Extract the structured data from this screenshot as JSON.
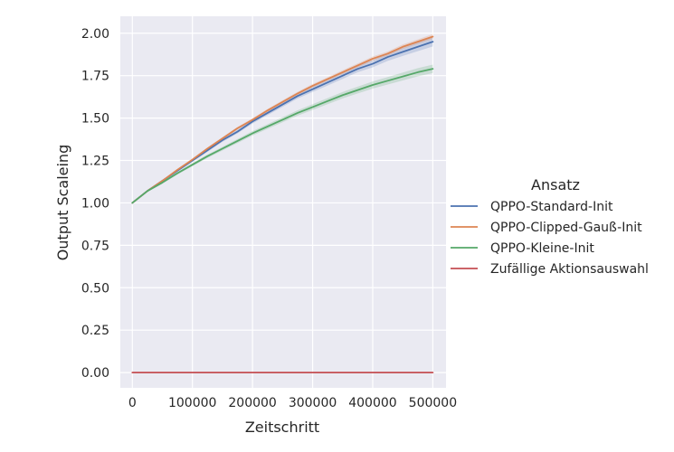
{
  "chart_data": {
    "type": "line",
    "xlabel": "Zeitschritt",
    "ylabel": "Output Scaleing",
    "xlim": [
      -20000,
      522000
    ],
    "ylim": [
      -0.09,
      2.1
    ],
    "xticks": [
      0,
      100000,
      200000,
      300000,
      400000,
      500000
    ],
    "xtick_labels": [
      "0",
      "100000",
      "200000",
      "300000",
      "400000",
      "500000"
    ],
    "yticks": [
      0.0,
      0.25,
      0.5,
      0.75,
      1.0,
      1.25,
      1.5,
      1.75,
      2.0
    ],
    "ytick_labels": [
      "0.00",
      "0.25",
      "0.50",
      "0.75",
      "1.00",
      "1.25",
      "1.50",
      "1.75",
      "2.00"
    ],
    "grid": true,
    "background": "#eaeaf2",
    "legend_title": "Ansatz",
    "legend_position": "right",
    "x": [
      0,
      25000,
      50000,
      75000,
      100000,
      125000,
      150000,
      175000,
      200000,
      225000,
      250000,
      275000,
      300000,
      325000,
      350000,
      375000,
      400000,
      425000,
      450000,
      475000,
      500000
    ],
    "series": [
      {
        "name": "QPPO-Standard-Init",
        "color": "#4c72b0",
        "values": [
          1.0,
          1.07,
          1.13,
          1.19,
          1.25,
          1.31,
          1.37,
          1.42,
          1.48,
          1.53,
          1.58,
          1.63,
          1.67,
          1.71,
          1.75,
          1.79,
          1.82,
          1.86,
          1.89,
          1.92,
          1.95
        ],
        "band": [
          0.005,
          0.005,
          0.006,
          0.007,
          0.008,
          0.009,
          0.01,
          0.011,
          0.012,
          0.013,
          0.014,
          0.015,
          0.016,
          0.018,
          0.019,
          0.02,
          0.021,
          0.023,
          0.024,
          0.026,
          0.028
        ]
      },
      {
        "name": "QPPO-Clipped-Gauß-Init",
        "color": "#dd8452",
        "values": [
          1.0,
          1.07,
          1.13,
          1.195,
          1.255,
          1.32,
          1.38,
          1.44,
          1.49,
          1.545,
          1.595,
          1.645,
          1.69,
          1.73,
          1.77,
          1.81,
          1.85,
          1.88,
          1.92,
          1.95,
          1.98
        ],
        "band": [
          0.005,
          0.005,
          0.006,
          0.006,
          0.007,
          0.007,
          0.008,
          0.008,
          0.009,
          0.009,
          0.01,
          0.01,
          0.011,
          0.011,
          0.012,
          0.012,
          0.013,
          0.013,
          0.014,
          0.014,
          0.015
        ]
      },
      {
        "name": "QPPO-Kleine-Init",
        "color": "#55a868",
        "values": [
          1.0,
          1.07,
          1.12,
          1.175,
          1.225,
          1.275,
          1.32,
          1.365,
          1.41,
          1.45,
          1.49,
          1.53,
          1.565,
          1.6,
          1.635,
          1.665,
          1.695,
          1.72,
          1.745,
          1.77,
          1.79
        ],
        "band": [
          0.005,
          0.006,
          0.007,
          0.008,
          0.009,
          0.01,
          0.011,
          0.012,
          0.013,
          0.014,
          0.015,
          0.016,
          0.017,
          0.018,
          0.019,
          0.02,
          0.021,
          0.022,
          0.023,
          0.024,
          0.025
        ]
      },
      {
        "name": "Zufällige Aktionsauswahl",
        "color": "#c44e52",
        "values": [
          0.0,
          0.0,
          0.0,
          0.0,
          0.0,
          0.0,
          0.0,
          0.0,
          0.0,
          0.0,
          0.0,
          0.0,
          0.0,
          0.0,
          0.0,
          0.0,
          0.0,
          0.0,
          0.0,
          0.0,
          0.0
        ],
        "band": [
          0,
          0,
          0,
          0,
          0,
          0,
          0,
          0,
          0,
          0,
          0,
          0,
          0,
          0,
          0,
          0,
          0,
          0,
          0,
          0,
          0
        ]
      }
    ]
  }
}
